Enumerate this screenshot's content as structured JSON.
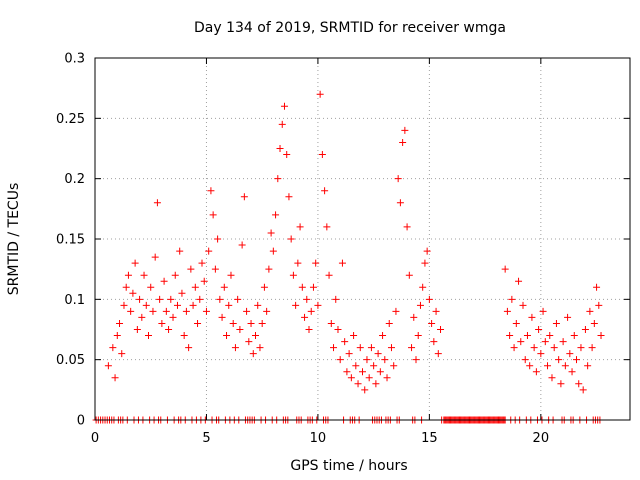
{
  "chart_data": {
    "type": "scatter",
    "title": "Day 134 of 2019, SRMTID for receiver wmga",
    "xlabel": "GPS time / hours",
    "ylabel": "SRMTID / TECUs",
    "xlim": [
      0,
      24
    ],
    "ylim": [
      0,
      0.3
    ],
    "xticks": [
      0,
      5,
      10,
      15,
      20
    ],
    "xtick_labels": [
      "0",
      "5",
      "10",
      "15",
      "20"
    ],
    "yticks": [
      0,
      0.05,
      0.1,
      0.15,
      0.2,
      0.25,
      0.3
    ],
    "ytick_labels": [
      "0",
      "0.05",
      "0.1",
      "0.15",
      "0.2",
      "0.25",
      "0.3"
    ],
    "grid": true,
    "marker": "+",
    "color": "#ff0000",
    "series": [
      {
        "name": "SRMTID",
        "points": [
          [
            0.6,
            0.045
          ],
          [
            0.8,
            0.06
          ],
          [
            0.9,
            0.035
          ],
          [
            1.0,
            0.07
          ],
          [
            1.1,
            0.08
          ],
          [
            1.2,
            0.055
          ],
          [
            1.3,
            0.095
          ],
          [
            1.4,
            0.11
          ],
          [
            1.5,
            0.12
          ],
          [
            1.6,
            0.09
          ],
          [
            1.7,
            0.105
          ],
          [
            1.8,
            0.13
          ],
          [
            1.9,
            0.075
          ],
          [
            2.0,
            0.1
          ],
          [
            2.1,
            0.085
          ],
          [
            2.2,
            0.12
          ],
          [
            2.3,
            0.095
          ],
          [
            2.4,
            0.07
          ],
          [
            2.5,
            0.11
          ],
          [
            2.6,
            0.09
          ],
          [
            2.7,
            0.135
          ],
          [
            2.8,
            0.18
          ],
          [
            2.9,
            0.1
          ],
          [
            3.0,
            0.08
          ],
          [
            3.1,
            0.115
          ],
          [
            3.2,
            0.09
          ],
          [
            3.3,
            0.075
          ],
          [
            3.4,
            0.1
          ],
          [
            3.5,
            0.085
          ],
          [
            3.6,
            0.12
          ],
          [
            3.7,
            0.095
          ],
          [
            3.8,
            0.14
          ],
          [
            3.9,
            0.105
          ],
          [
            4.0,
            0.07
          ],
          [
            4.1,
            0.09
          ],
          [
            4.2,
            0.06
          ],
          [
            4.3,
            0.125
          ],
          [
            4.4,
            0.095
          ],
          [
            4.5,
            0.11
          ],
          [
            4.6,
            0.08
          ],
          [
            4.7,
            0.1
          ],
          [
            4.8,
            0.13
          ],
          [
            4.9,
            0.115
          ],
          [
            5.0,
            0.09
          ],
          [
            5.1,
            0.14
          ],
          [
            5.2,
            0.19
          ],
          [
            5.3,
            0.17
          ],
          [
            5.4,
            0.125
          ],
          [
            5.5,
            0.15
          ],
          [
            5.6,
            0.1
          ],
          [
            5.7,
            0.085
          ],
          [
            5.8,
            0.11
          ],
          [
            5.9,
            0.07
          ],
          [
            6.0,
            0.095
          ],
          [
            6.1,
            0.12
          ],
          [
            6.2,
            0.08
          ],
          [
            6.3,
            0.06
          ],
          [
            6.4,
            0.1
          ],
          [
            6.5,
            0.075
          ],
          [
            6.6,
            0.145
          ],
          [
            6.7,
            0.185
          ],
          [
            6.8,
            0.09
          ],
          [
            6.9,
            0.065
          ],
          [
            7.0,
            0.08
          ],
          [
            7.1,
            0.055
          ],
          [
            7.2,
            0.07
          ],
          [
            7.3,
            0.095
          ],
          [
            7.4,
            0.06
          ],
          [
            7.5,
            0.08
          ],
          [
            7.6,
            0.11
          ],
          [
            7.7,
            0.09
          ],
          [
            7.8,
            0.125
          ],
          [
            7.9,
            0.155
          ],
          [
            8.0,
            0.14
          ],
          [
            8.1,
            0.17
          ],
          [
            8.2,
            0.2
          ],
          [
            8.3,
            0.225
          ],
          [
            8.4,
            0.245
          ],
          [
            8.5,
            0.26
          ],
          [
            8.6,
            0.22
          ],
          [
            8.7,
            0.185
          ],
          [
            8.8,
            0.15
          ],
          [
            8.9,
            0.12
          ],
          [
            9.0,
            0.095
          ],
          [
            9.1,
            0.13
          ],
          [
            9.2,
            0.16
          ],
          [
            9.3,
            0.11
          ],
          [
            9.4,
            0.085
          ],
          [
            9.5,
            0.1
          ],
          [
            9.6,
            0.075
          ],
          [
            9.7,
            0.09
          ],
          [
            9.8,
            0.11
          ],
          [
            9.9,
            0.13
          ],
          [
            10.0,
            0.095
          ],
          [
            10.1,
            0.27
          ],
          [
            10.2,
            0.22
          ],
          [
            10.3,
            0.19
          ],
          [
            10.4,
            0.16
          ],
          [
            10.5,
            0.12
          ],
          [
            10.6,
            0.08
          ],
          [
            10.7,
            0.06
          ],
          [
            10.8,
            0.1
          ],
          [
            10.9,
            0.075
          ],
          [
            11.0,
            0.05
          ],
          [
            11.1,
            0.13
          ],
          [
            11.2,
            0.065
          ],
          [
            11.3,
            0.04
          ],
          [
            11.4,
            0.055
          ],
          [
            11.5,
            0.035
          ],
          [
            11.6,
            0.07
          ],
          [
            11.7,
            0.045
          ],
          [
            11.8,
            0.03
          ],
          [
            11.9,
            0.06
          ],
          [
            12.0,
            0.04
          ],
          [
            12.1,
            0.025
          ],
          [
            12.2,
            0.05
          ],
          [
            12.3,
            0.035
          ],
          [
            12.4,
            0.06
          ],
          [
            12.5,
            0.045
          ],
          [
            12.6,
            0.03
          ],
          [
            12.7,
            0.055
          ],
          [
            12.8,
            0.04
          ],
          [
            12.9,
            0.07
          ],
          [
            13.0,
            0.05
          ],
          [
            13.1,
            0.035
          ],
          [
            13.2,
            0.08
          ],
          [
            13.3,
            0.06
          ],
          [
            13.4,
            0.045
          ],
          [
            13.5,
            0.09
          ],
          [
            13.6,
            0.2
          ],
          [
            13.7,
            0.18
          ],
          [
            13.8,
            0.23
          ],
          [
            13.9,
            0.24
          ],
          [
            14.0,
            0.16
          ],
          [
            14.1,
            0.12
          ],
          [
            14.2,
            0.06
          ],
          [
            14.3,
            0.085
          ],
          [
            14.4,
            0.05
          ],
          [
            14.5,
            0.07
          ],
          [
            14.6,
            0.095
          ],
          [
            14.7,
            0.11
          ],
          [
            14.8,
            0.13
          ],
          [
            14.9,
            0.14
          ],
          [
            15.0,
            0.1
          ],
          [
            15.1,
            0.08
          ],
          [
            15.2,
            0.065
          ],
          [
            15.3,
            0.09
          ],
          [
            15.4,
            0.055
          ],
          [
            15.5,
            0.075
          ],
          [
            18.4,
            0.125
          ],
          [
            18.5,
            0.09
          ],
          [
            18.6,
            0.07
          ],
          [
            18.7,
            0.1
          ],
          [
            18.8,
            0.06
          ],
          [
            18.9,
            0.08
          ],
          [
            19.0,
            0.115
          ],
          [
            19.1,
            0.065
          ],
          [
            19.2,
            0.095
          ],
          [
            19.3,
            0.05
          ],
          [
            19.4,
            0.07
          ],
          [
            19.5,
            0.045
          ],
          [
            19.6,
            0.085
          ],
          [
            19.7,
            0.06
          ],
          [
            19.8,
            0.04
          ],
          [
            19.9,
            0.075
          ],
          [
            20.0,
            0.055
          ],
          [
            20.1,
            0.09
          ],
          [
            20.2,
            0.065
          ],
          [
            20.3,
            0.045
          ],
          [
            20.4,
            0.07
          ],
          [
            20.5,
            0.035
          ],
          [
            20.6,
            0.06
          ],
          [
            20.7,
            0.08
          ],
          [
            20.8,
            0.05
          ],
          [
            20.9,
            0.03
          ],
          [
            21.0,
            0.065
          ],
          [
            21.1,
            0.045
          ],
          [
            21.2,
            0.085
          ],
          [
            21.3,
            0.055
          ],
          [
            21.4,
            0.04
          ],
          [
            21.5,
            0.07
          ],
          [
            21.6,
            0.05
          ],
          [
            21.7,
            0.03
          ],
          [
            21.8,
            0.06
          ],
          [
            21.9,
            0.025
          ],
          [
            22.0,
            0.075
          ],
          [
            22.1,
            0.045
          ],
          [
            22.2,
            0.09
          ],
          [
            22.3,
            0.06
          ],
          [
            22.4,
            0.08
          ],
          [
            22.5,
            0.11
          ],
          [
            22.6,
            0.095
          ],
          [
            22.7,
            0.07
          ]
        ],
        "zero_points": [
          0.05,
          0.15,
          0.25,
          0.35,
          0.45,
          0.55,
          0.65,
          0.75,
          0.85,
          1.05,
          1.15,
          1.25,
          1.45,
          1.75,
          1.95,
          2.15,
          2.45,
          2.65,
          2.85,
          2.95,
          3.25,
          3.55,
          3.75,
          3.85,
          4.05,
          4.35,
          4.55,
          4.75,
          4.95,
          5.25,
          5.45,
          5.55,
          5.85,
          6.05,
          6.25,
          6.45,
          6.75,
          6.85,
          6.95,
          7.05,
          7.15,
          7.45,
          7.65,
          7.95,
          8.15,
          8.45,
          8.55,
          8.65,
          9.05,
          9.15,
          9.25,
          9.55,
          9.65,
          9.75,
          9.95,
          10.25,
          10.35,
          10.45,
          11.15,
          11.45,
          11.55,
          11.65,
          11.85,
          12.45,
          12.55,
          12.65,
          12.75,
          12.85,
          13.05,
          13.15,
          13.25,
          13.55,
          13.65,
          14.25,
          14.35,
          14.65,
          15.55,
          15.65,
          15.7,
          15.75,
          15.8,
          15.85,
          15.9,
          15.95,
          16.0,
          16.05,
          16.1,
          16.15,
          16.2,
          16.25,
          16.3,
          16.35,
          16.4,
          16.45,
          16.5,
          16.55,
          16.6,
          16.65,
          16.7,
          16.75,
          16.8,
          16.85,
          16.9,
          16.95,
          17.0,
          17.05,
          17.1,
          17.15,
          17.2,
          17.25,
          17.3,
          17.35,
          17.4,
          17.45,
          17.5,
          17.55,
          17.6,
          17.65,
          17.7,
          17.75,
          17.8,
          17.85,
          17.9,
          17.95,
          18.0,
          18.05,
          18.1,
          18.15,
          18.2,
          18.25,
          18.3,
          18.35,
          18.4,
          18.65,
          18.85,
          19.05,
          19.35,
          19.55,
          19.85,
          20.05,
          20.35,
          20.55,
          20.95,
          21.05,
          21.35,
          21.45,
          21.75,
          22.05,
          22.35,
          22.45,
          22.55,
          22.65
        ]
      }
    ]
  }
}
